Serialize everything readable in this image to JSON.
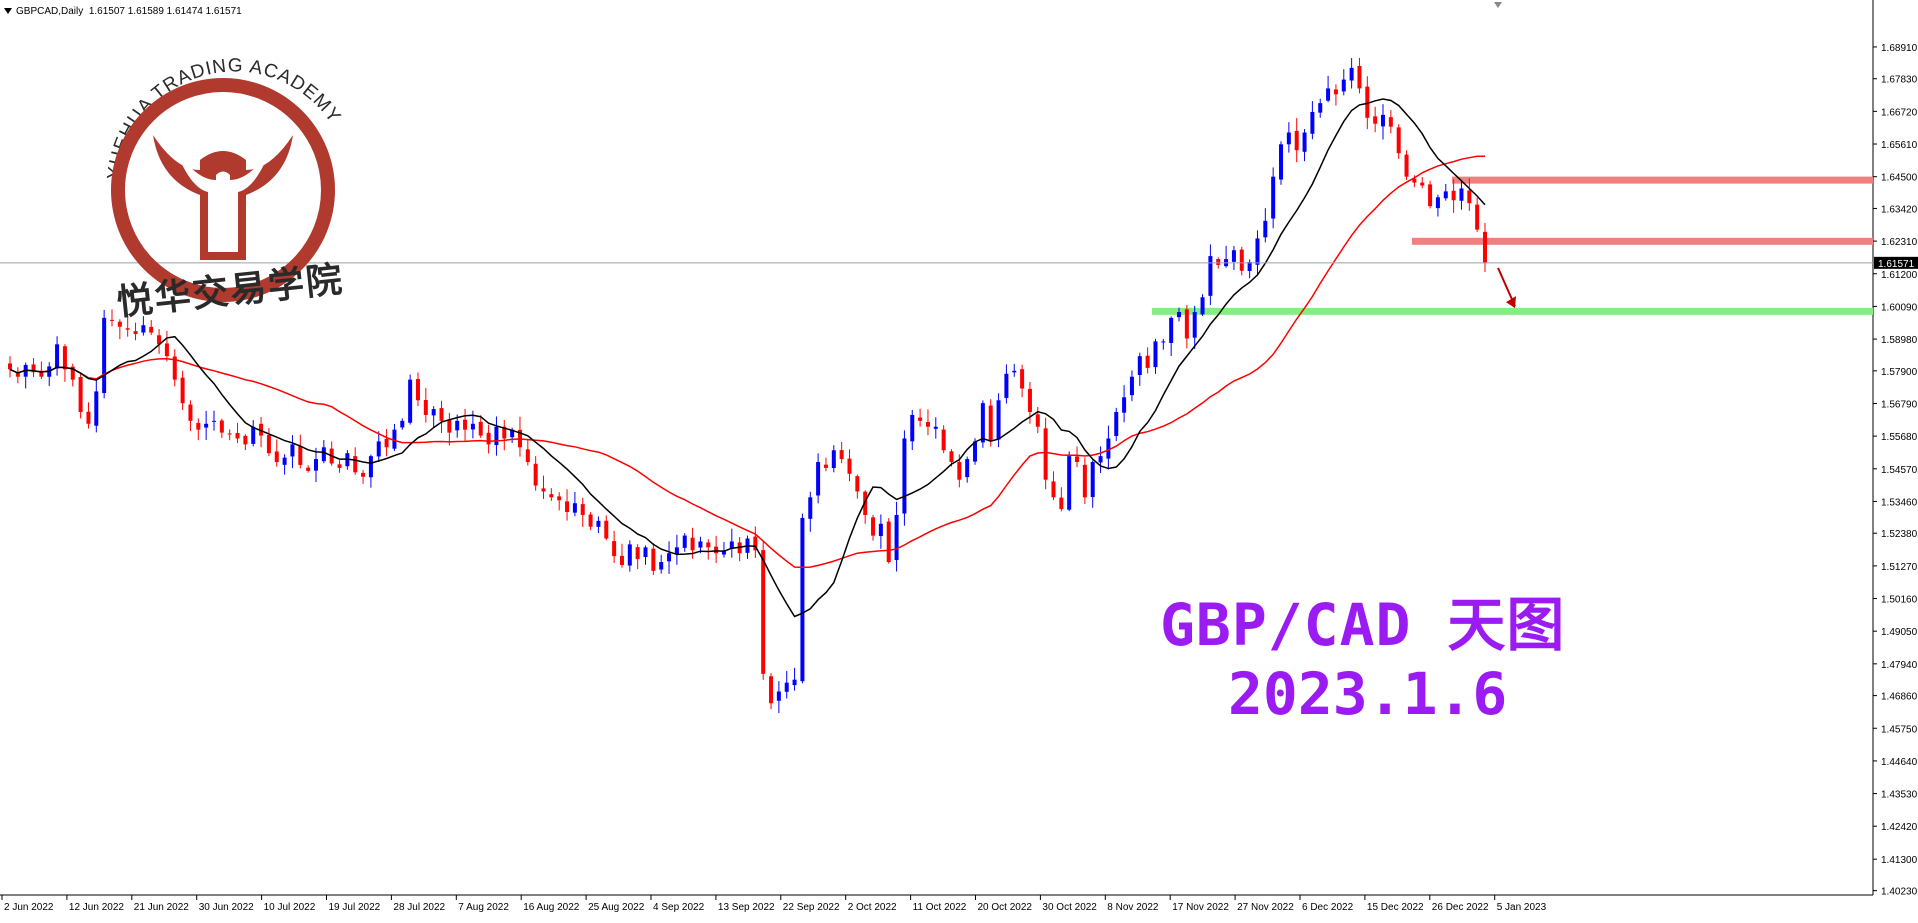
{
  "header": {
    "symbol": "GBPCAD,Daily",
    "ohlc": "1.61507 1.61589 1.61474 1.61571"
  },
  "overlay": {
    "title": "GBP/CAD  天图",
    "date": "2023.1.6"
  },
  "watermark": {
    "arc_text": "YUEHUA TRADING ACADEMY",
    "chinese": "悦华交易学院",
    "color": "#b03a2e"
  },
  "colors": {
    "bull": "#0000ff",
    "bear": "#ff0000",
    "ma_fast": "#000000",
    "ma_slow": "#ff0000",
    "resistance": "#f08080",
    "support": "#80f080",
    "overlay_text": "#9b1cf2"
  },
  "chart_data": {
    "type": "candlestick",
    "symbol": "GBPCAD",
    "timeframe": "Daily",
    "current_price": "1.61571",
    "y_ticks": [
      "1.68910",
      "1.67830",
      "1.66720",
      "1.65610",
      "1.64500",
      "1.63420",
      "1.62310",
      "1.61200",
      "1.60090",
      "1.58980",
      "1.57900",
      "1.56790",
      "1.55680",
      "1.54570",
      "1.53460",
      "1.52380",
      "1.51270",
      "1.50160",
      "1.49050",
      "1.47940",
      "1.46860",
      "1.45750",
      "1.44640",
      "1.43530",
      "1.42420",
      "1.41300",
      "1.40230"
    ],
    "ylim": [
      1.4015,
      1.6935
    ],
    "x_ticks": [
      "2 Jun 2022",
      "12 Jun 2022",
      "21 Jun 2022",
      "30 Jun 2022",
      "10 Jul 2022",
      "19 Jul 2022",
      "28 Jul 2022",
      "7 Aug 2022",
      "16 Aug 2022",
      "25 Aug 2022",
      "4 Sep 2022",
      "13 Sep 2022",
      "22 Sep 2022",
      "2 Oct 2022",
      "11 Oct 2022",
      "20 Oct 2022",
      "30 Oct 2022",
      "8 Nov 2022",
      "17 Nov 2022",
      "27 Nov 2022",
      "6 Dec 2022",
      "15 Dec 2022",
      "26 Dec 2022",
      "5 Jan 2023"
    ],
    "close": [
      1.5795,
      1.577,
      1.581,
      1.5785,
      1.577,
      1.5805,
      1.588,
      1.5795,
      1.576,
      1.565,
      1.561,
      1.572,
      1.597,
      1.596,
      1.594,
      1.593,
      1.5915,
      1.5945,
      1.592,
      1.588,
      1.584,
      1.576,
      1.568,
      1.562,
      1.559,
      1.561,
      1.562,
      1.558,
      1.5575,
      1.556,
      1.554,
      1.56,
      1.557,
      1.551,
      1.548,
      1.5495,
      1.554,
      1.547,
      1.545,
      1.549,
      1.553,
      1.5475,
      1.546,
      1.551,
      1.5445,
      1.543,
      1.55,
      1.555,
      1.553,
      1.559,
      1.562,
      1.576,
      1.569,
      1.564,
      1.566,
      1.562,
      1.558,
      1.562,
      1.559,
      1.561,
      1.557,
      1.554,
      1.56,
      1.556,
      1.559,
      1.553,
      1.548,
      1.54,
      1.538,
      1.536,
      1.535,
      1.531,
      1.534,
      1.53,
      1.526,
      1.528,
      1.522,
      1.516,
      1.513,
      1.52,
      1.515,
      1.519,
      1.511,
      1.514,
      1.517,
      1.519,
      1.523,
      1.518,
      1.521,
      1.519,
      1.517,
      1.518,
      1.521,
      1.517,
      1.522,
      1.518,
      1.476,
      1.466,
      1.47,
      1.473,
      1.474,
      1.529,
      1.536,
      1.548,
      1.546,
      1.552,
      1.549,
      1.544,
      1.538,
      1.53,
      1.523,
      1.527,
      1.514,
      1.53,
      1.556,
      1.564,
      1.562,
      1.56,
      1.56,
      1.552,
      1.548,
      1.542,
      1.549,
      1.555,
      1.568,
      1.555,
      1.569,
      1.578,
      1.579,
      1.573,
      1.565,
      1.56,
      1.542,
      1.536,
      1.532,
      1.55,
      1.548,
      1.536,
      1.548,
      1.55,
      1.556,
      1.565,
      1.57,
      1.577,
      1.584,
      1.58,
      1.589,
      1.589,
      1.597,
      1.599,
      1.59,
      1.599,
      1.604,
      1.618,
      1.615,
      1.617,
      1.62,
      1.613,
      1.616,
      1.624,
      1.63,
      1.645,
      1.656,
      1.66,
      1.654,
      1.66,
      1.667,
      1.67,
      1.675,
      1.673,
      1.678,
      1.682,
      1.675,
      1.665,
      1.663,
      1.666,
      1.662,
      1.653,
      1.645,
      1.643,
      1.642,
      1.635,
      1.638,
      1.64,
      1.637,
      1.641,
      1.636,
      1.627,
      1.6157
    ]
  }
}
